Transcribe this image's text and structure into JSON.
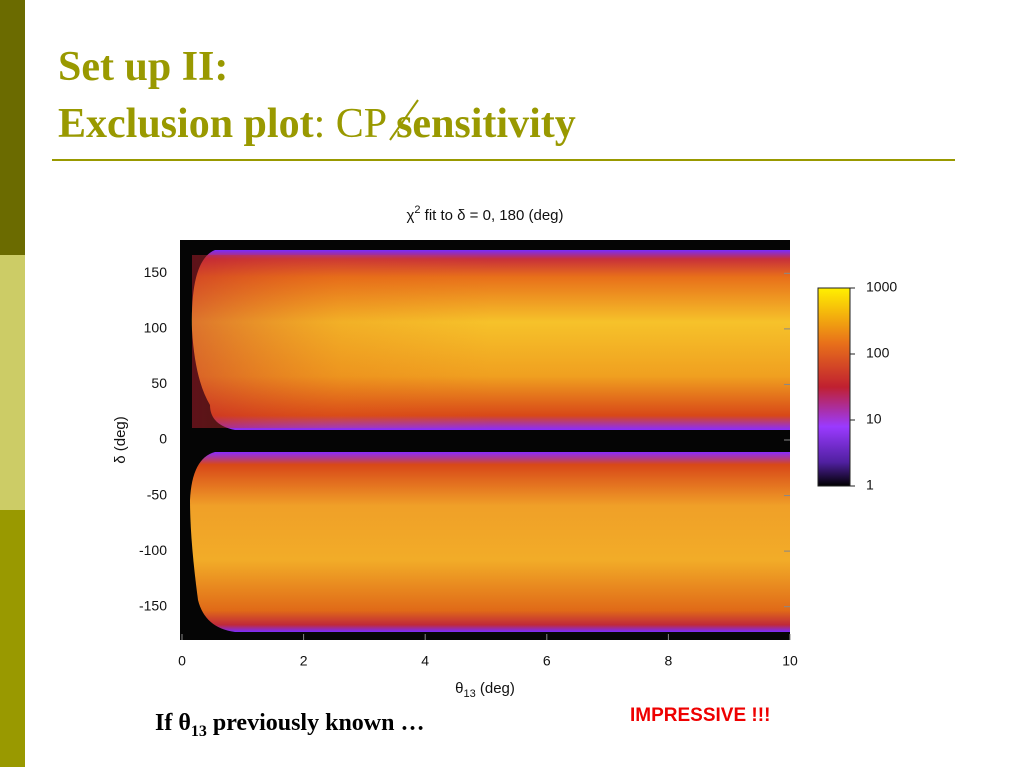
{
  "slide": {
    "title_line1": "Set up II:",
    "title_line2": [
      "Exclusion plot",
      ":",
      "CP",
      "sensitivity"
    ],
    "footer": {
      "prefix": "If θ",
      "subscript": "13",
      "suffix": " previously known …"
    },
    "callout": "IMPRESSIVE !!!"
  },
  "chart_data": {
    "type": "heatmap",
    "title": {
      "symbol": "χ",
      "superscript": "2",
      "text": " fit to δ = 0, 180 (deg)"
    },
    "x_label": {
      "symbol": "θ",
      "subscript": "13",
      "unit": " (deg)"
    },
    "y_label": "δ (deg)",
    "xlim": [
      0,
      10
    ],
    "xticks": [
      0,
      2,
      4,
      6,
      8,
      10
    ],
    "ylim": [
      -180,
      180
    ],
    "yticks": [
      -150,
      -100,
      -50,
      0,
      50,
      100,
      150
    ],
    "colorbar": {
      "scale": "log",
      "lim": [
        1,
        1000
      ],
      "ticks": [
        1,
        10,
        100,
        1000
      ]
    }
  }
}
